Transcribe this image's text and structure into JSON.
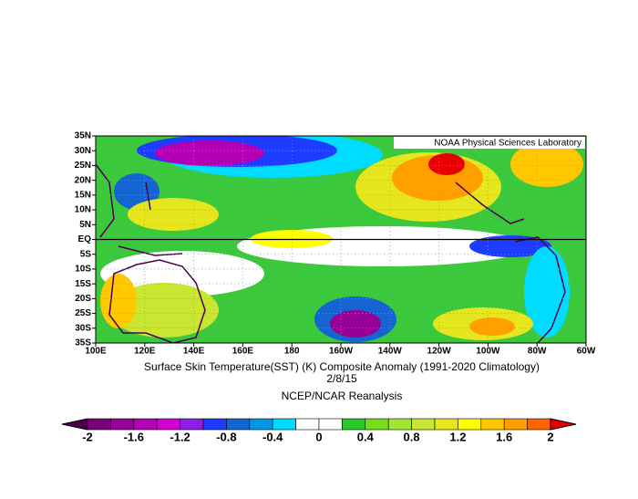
{
  "map": {
    "credit": "NOAA Physical Sciences Laboratory",
    "lat_ticks": [
      {
        "value": 35,
        "label": "35N"
      },
      {
        "value": 30,
        "label": "30N"
      },
      {
        "value": 25,
        "label": "25N"
      },
      {
        "value": 20,
        "label": "20N"
      },
      {
        "value": 15,
        "label": "15N"
      },
      {
        "value": 10,
        "label": "10N"
      },
      {
        "value": 5,
        "label": "5N"
      },
      {
        "value": 0,
        "label": "EQ"
      },
      {
        "value": -5,
        "label": "5S"
      },
      {
        "value": -10,
        "label": "10S"
      },
      {
        "value": -15,
        "label": "15S"
      },
      {
        "value": -20,
        "label": "20S"
      },
      {
        "value": -25,
        "label": "25S"
      },
      {
        "value": -30,
        "label": "30S"
      },
      {
        "value": -35,
        "label": "35S"
      }
    ],
    "lon_ticks": [
      {
        "value": 100,
        "label": "100E"
      },
      {
        "value": 120,
        "label": "120E"
      },
      {
        "value": 140,
        "label": "140E"
      },
      {
        "value": 160,
        "label": "160E"
      },
      {
        "value": 180,
        "label": "180"
      },
      {
        "value": 200,
        "label": "160W"
      },
      {
        "value": 220,
        "label": "140W"
      },
      {
        "value": 240,
        "label": "120W"
      },
      {
        "value": 260,
        "label": "100W"
      },
      {
        "value": 280,
        "label": "80W"
      },
      {
        "value": 300,
        "label": "60W"
      }
    ],
    "title": "Surface Skin Temperature(SST) (K) Composite Anomaly (1991-2020 Climatology)",
    "date": "2/8/15",
    "source": "NCEP/NCAR Reanalysis"
  },
  "colorbar": {
    "levels": [
      -2,
      -1.8,
      -1.6,
      -1.4,
      -1.2,
      -1,
      -0.8,
      -0.6,
      -0.4,
      -0.2,
      0,
      0.2,
      0.4,
      0.6,
      0.8,
      1,
      1.2,
      1.4,
      1.6,
      1.8,
      2
    ],
    "colors": [
      "#4b004b",
      "#780078",
      "#960096",
      "#b400b4",
      "#d200d2",
      "#8c1ee6",
      "#1e3cff",
      "#1464d2",
      "#0096e1",
      "#00dcff",
      "#ffffff",
      "#ffffff",
      "#28c828",
      "#78dc1e",
      "#a0e632",
      "#c8e632",
      "#e6e61e",
      "#ffff00",
      "#ffc800",
      "#ffa000",
      "#ff6400",
      "#e60000"
    ],
    "ticks": [
      -2,
      -1.6,
      -1.2,
      -0.8,
      -0.4,
      0,
      0.4,
      0.8,
      1.2,
      1.6,
      2
    ]
  }
}
